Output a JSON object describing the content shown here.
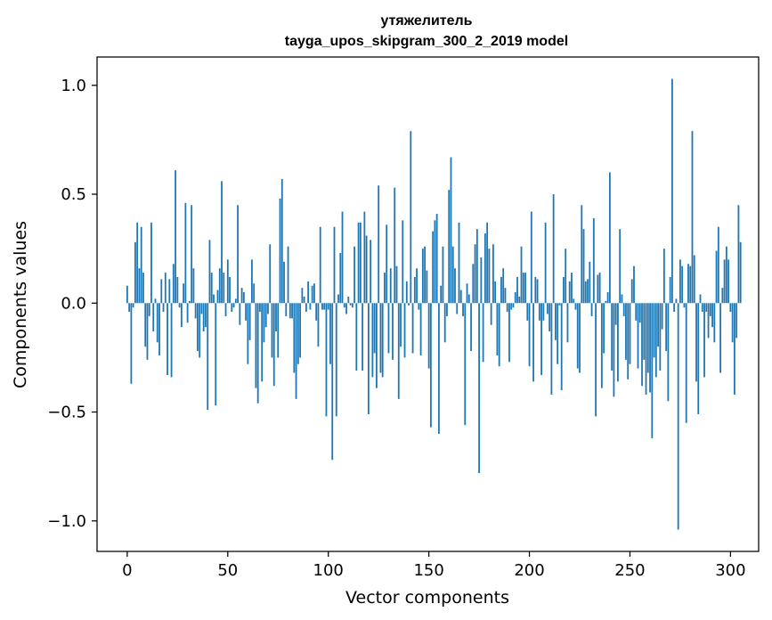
{
  "chart_data": {
    "type": "bar",
    "title": "утяжелитель",
    "subtitle": "tayga_upos_skipgram_300_2_2019 model",
    "xlabel": "Vector components",
    "ylabel": "Components values",
    "xlim": [
      -15,
      314
    ],
    "ylim": [
      -1.14,
      1.13
    ],
    "xticks": [
      0,
      50,
      100,
      150,
      200,
      250,
      300
    ],
    "xtick_labels": [
      "0",
      "50",
      "100",
      "150",
      "200",
      "250",
      "300"
    ],
    "yticks": [
      1.0,
      0.5,
      0.0,
      -0.5,
      -1.0
    ],
    "ytick_labels": [
      "1.0",
      "0.5",
      "0.0",
      "−0.5",
      "−1.0"
    ],
    "color": "#1f77b4",
    "values": [
      0.08,
      -0.04,
      -0.37,
      -0.02,
      0.28,
      0.37,
      0.16,
      0.35,
      0.14,
      -0.2,
      -0.26,
      -0.06,
      0.37,
      -0.13,
      0.02,
      -0.18,
      -0.24,
      0.11,
      -0.04,
      0.14,
      -0.33,
      0.11,
      -0.34,
      0.18,
      0.61,
      0.12,
      -0.02,
      -0.11,
      0.09,
      0.46,
      -0.09,
      0.01,
      0.45,
      0.16,
      -0.07,
      -0.22,
      -0.25,
      -0.05,
      -0.13,
      -0.11,
      -0.49,
      0.29,
      0.14,
      0.04,
      -0.47,
      0.06,
      0.16,
      0.56,
      0.14,
      -0.06,
      0.2,
      0.12,
      -0.04,
      -0.02,
      0.02,
      0.45,
      -0.1,
      0.07,
      0.05,
      -0.08,
      -0.28,
      -0.17,
      0.2,
      0.09,
      -0.39,
      -0.46,
      -0.04,
      -0.36,
      -0.18,
      -0.11,
      -0.05,
      0.27,
      -0.25,
      -0.38,
      -0.13,
      -0.25,
      0.48,
      0.57,
      0.19,
      -0.06,
      0.26,
      -0.07,
      -0.07,
      -0.32,
      -0.44,
      -0.28,
      -0.25,
      0.07,
      0.03,
      -0.04,
      0.1,
      -0.03,
      0.08,
      0.09,
      -0.08,
      -0.2,
      0.35,
      -0.03,
      -0.03,
      -0.52,
      -0.03,
      -0.28,
      -0.72,
      0.35,
      -0.52,
      0.04,
      0.23,
      0.42,
      -0.02,
      -0.05,
      0.03,
      -0.01,
      -0.02,
      0.26,
      -0.31,
      0.37,
      0.37,
      -0.31,
      0.42,
      0.31,
      -0.51,
      0.29,
      -0.34,
      -0.23,
      -0.39,
      0.54,
      -0.32,
      -0.34,
      0.14,
      0.36,
      -0.23,
      0.16,
      -0.26,
      0.53,
      0.17,
      -0.44,
      -0.2,
      0.38,
      -0.25,
      0.1,
      -0.01,
      0.79,
      -0.23,
      0.12,
      0.16,
      -0.03,
      -0.24,
      0.25,
      0.26,
      0.15,
      -0.3,
      -0.57,
      0.33,
      0.38,
      0.41,
      -0.6,
      0.08,
      0.26,
      -0.18,
      -0.06,
      0.52,
      0.67,
      0.26,
      0.16,
      -0.05,
      0.37,
      0.06,
      -0.06,
      -0.56,
      0.09,
      0.04,
      -0.22,
      0.18,
      0.27,
      0.34,
      -0.78,
      0.21,
      -0.27,
      0.32,
      0.37,
      0.25,
      -0.1,
      0.27,
      0.1,
      -0.24,
      -0.29,
      0.12,
      0.16,
      0.07,
      -0.04,
      -0.27,
      -0.03,
      -0.02,
      0.05,
      0.12,
      0.03,
      0.26,
      0.14,
      0.14,
      -0.08,
      -0.29,
      0.42,
      -0.36,
      0.12,
      0.11,
      -0.08,
      -0.33,
      -0.08,
      0.37,
      -0.05,
      -0.13,
      -0.42,
      0.5,
      -0.17,
      -0.28,
      -0.01,
      -0.4,
      0.12,
      0.25,
      -0.18,
      0.1,
      0.14,
      0.02,
      -0.03,
      -0.3,
      -0.32,
      0.45,
      0.34,
      0.1,
      0.11,
      0.19,
      -0.06,
      0.39,
      -0.52,
      0.13,
      0.14,
      -0.39,
      -0.23,
      0.01,
      0.05,
      0.6,
      -0.31,
      -0.43,
      -0.1,
      -0.36,
      0.34,
      0.04,
      -0.06,
      -0.26,
      -0.35,
      -0.28,
      0.11,
      0.17,
      -0.08,
      -0.3,
      -0.09,
      -0.38,
      -0.26,
      -0.42,
      -0.32,
      -0.41,
      -0.62,
      -0.25,
      -0.34,
      -0.2,
      -0.31,
      -0.12,
      0.25,
      -0.22,
      -0.45,
      0.12,
      1.03,
      -0.04,
      0.02,
      -1.04,
      0.2,
      0.17,
      -0.02,
      -0.55,
      0.18,
      0.17,
      0.79,
      0.22,
      -0.36,
      -0.51,
      0.04,
      -0.04,
      -0.34,
      -0.04,
      -0.16,
      -0.06,
      -0.11,
      -0.18,
      0.24,
      0.35,
      -0.32,
      0.07,
      0.2,
      0.26,
      0.2,
      -0.04,
      -0.18,
      -0.42,
      -0.16,
      0.45,
      0.28
    ]
  }
}
